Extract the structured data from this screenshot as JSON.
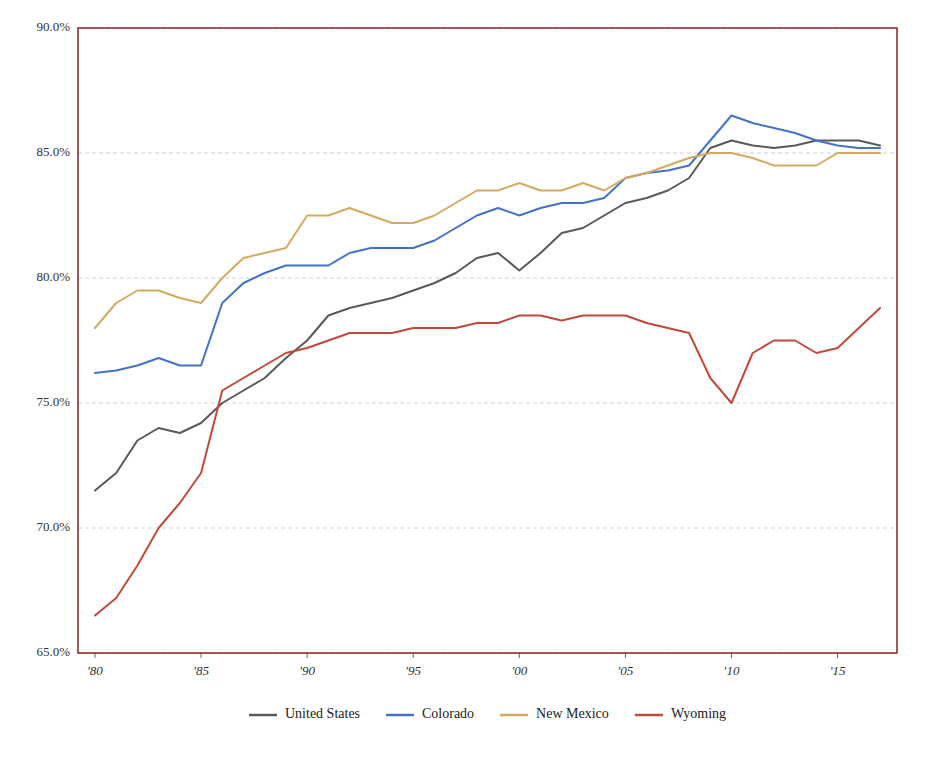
{
  "chart_data": {
    "type": "line",
    "x": [
      1980,
      1981,
      1982,
      1983,
      1984,
      1985,
      1986,
      1987,
      1988,
      1989,
      1990,
      1991,
      1992,
      1993,
      1994,
      1995,
      1996,
      1997,
      1998,
      1999,
      2000,
      2001,
      2002,
      2003,
      2004,
      2005,
      2006,
      2007,
      2008,
      2009,
      2010,
      2011,
      2012,
      2013,
      2014,
      2015,
      2016,
      2017
    ],
    "series": [
      {
        "name": "United States",
        "color": "#595959",
        "values": [
          71.5,
          72.2,
          73.5,
          74.0,
          73.8,
          74.2,
          75.0,
          75.5,
          76.0,
          76.8,
          77.5,
          78.5,
          78.8,
          79.0,
          79.2,
          79.5,
          79.8,
          80.2,
          80.8,
          81.0,
          80.3,
          81.0,
          81.8,
          82.0,
          82.5,
          83.0,
          83.2,
          83.5,
          84.0,
          85.2,
          85.5,
          85.3,
          85.2,
          85.3,
          85.5,
          85.5,
          85.5,
          85.3
        ]
      },
      {
        "name": "Colorado",
        "color": "#4472C4",
        "values": [
          76.2,
          76.3,
          76.5,
          76.8,
          76.5,
          76.5,
          79.0,
          79.8,
          80.2,
          80.5,
          80.5,
          80.5,
          81.0,
          81.2,
          81.2,
          81.2,
          81.5,
          82.0,
          82.5,
          82.8,
          82.5,
          82.8,
          83.0,
          83.0,
          83.2,
          84.0,
          84.2,
          84.3,
          84.5,
          85.5,
          86.5,
          86.2,
          86.0,
          85.8,
          85.5,
          85.3,
          85.2,
          85.2
        ]
      },
      {
        "name": "New Mexico",
        "color": "#D4AA60",
        "values": [
          78.0,
          79.0,
          79.5,
          79.5,
          79.2,
          79.0,
          80.0,
          80.8,
          81.0,
          81.2,
          82.5,
          82.5,
          82.8,
          82.5,
          82.2,
          82.2,
          82.5,
          83.0,
          83.5,
          83.5,
          83.8,
          83.5,
          83.5,
          83.8,
          83.5,
          84.0,
          84.2,
          84.5,
          84.8,
          85.0,
          85.0,
          84.8,
          84.5,
          84.5,
          84.5,
          85.0,
          85.0,
          85.0
        ]
      },
      {
        "name": "Wyoming",
        "color": "#C0493B",
        "values": [
          66.5,
          67.2,
          68.5,
          70.0,
          71.0,
          72.2,
          75.5,
          76.0,
          76.5,
          77.0,
          77.2,
          77.5,
          77.8,
          77.8,
          77.8,
          78.0,
          78.0,
          78.0,
          78.2,
          78.2,
          78.5,
          78.5,
          78.3,
          78.5,
          78.5,
          78.5,
          78.2,
          78.0,
          77.8,
          76.0,
          75.0,
          77.0,
          77.5,
          77.5,
          77.0,
          77.2,
          78.0,
          78.8
        ]
      }
    ],
    "xlim": [
      1979.2,
      2017.8
    ],
    "xticks": [
      {
        "value": 1980,
        "label": "'80"
      },
      {
        "value": 1985,
        "label": "'85"
      },
      {
        "value": 1990,
        "label": "'90"
      },
      {
        "value": 1995,
        "label": "'95"
      },
      {
        "value": 2000,
        "label": "'00"
      },
      {
        "value": 2005,
        "label": "'05"
      },
      {
        "value": 2010,
        "label": "'10"
      },
      {
        "value": 2015,
        "label": "'15"
      }
    ],
    "ylim": [
      65.0,
      90.0
    ],
    "yticks": [
      {
        "value": 65.0,
        "label": "65.0%"
      },
      {
        "value": 70.0,
        "label": "70.0%"
      },
      {
        "value": 75.0,
        "label": "75.0%"
      },
      {
        "value": 80.0,
        "label": "80.0%"
      },
      {
        "value": 85.0,
        "label": "85.0%"
      },
      {
        "value": 90.0,
        "label": "90.0%"
      }
    ],
    "grid": true,
    "legend": "bottom"
  }
}
